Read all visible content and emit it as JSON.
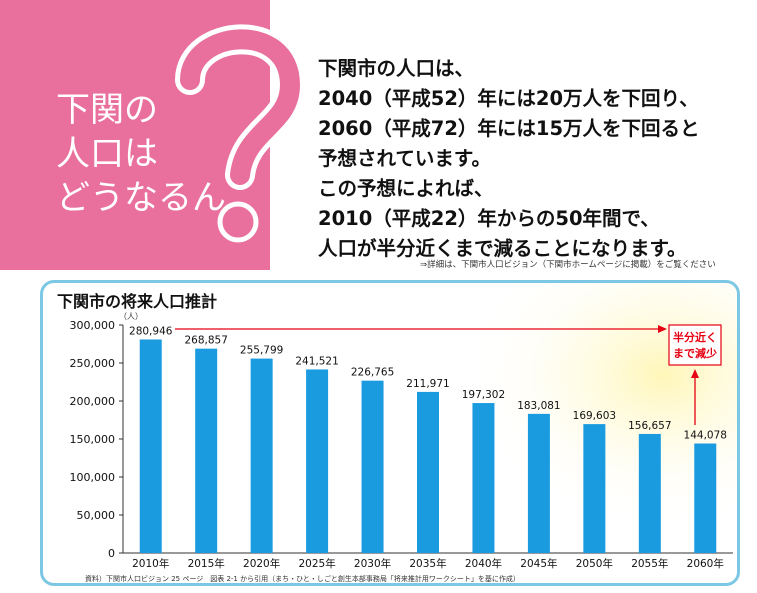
{
  "pink_panel": {
    "title_lines": [
      "下関の",
      "人口は",
      "どうなるん"
    ]
  },
  "headline": {
    "lines": [
      "下関市の人口は、",
      "2040（平成52）年には20万人を下回り、",
      "2060（平成72）年には15万人を下回ると",
      "予想されています。",
      "この予想によれば、",
      "2010（平成22）年からの50年間で、",
      "人口が半分近くまで減ることになります。"
    ]
  },
  "detail_note": "⇒詳細は、下関市人口ビジョン（下関市ホームページに掲載）をご覧ください",
  "colors": {
    "pink": "#e96f9c",
    "bar": "#1a9be0",
    "frame": "#7cc7e4",
    "accent_red": "#e60012",
    "glow": "#fff6b8"
  },
  "chart_data": {
    "type": "bar",
    "title": "下関市の将来人口推計",
    "ylabel": "（人）",
    "categories": [
      "2010年",
      "2015年",
      "2020年",
      "2025年",
      "2030年",
      "2035年",
      "2040年",
      "2045年",
      "2050年",
      "2055年",
      "2060年"
    ],
    "values": [
      280946,
      268857,
      255799,
      241521,
      226765,
      211971,
      197302,
      183081,
      169603,
      156657,
      144078
    ],
    "value_labels": [
      "280,946",
      "268,857",
      "255,799",
      "241,521",
      "226,765",
      "211,971",
      "197,302",
      "183,081",
      "169,603",
      "156,657",
      "144,078"
    ],
    "ylim": [
      0,
      300000
    ],
    "yticks": [
      0,
      50000,
      100000,
      150000,
      200000,
      250000,
      300000
    ],
    "ytick_labels": [
      "0",
      "50,000",
      "100,000",
      "150,000",
      "200,000",
      "250,000",
      "300,000"
    ],
    "annotation": [
      "半分近く",
      "まで減少"
    ],
    "source": "資料）下関市人口ビジョン 25 ページ　図表 2-1 から引用（まち・ひと・しごと創生本部事務局「将来推計用ワークシート」を基に作成）",
    "grid": false
  }
}
